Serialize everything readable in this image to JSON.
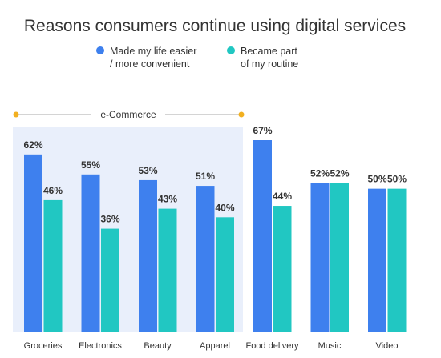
{
  "colors": {
    "series1": "#3e80ee",
    "series2": "#21c7c2",
    "highlight_bg": "#e9effb",
    "bracket": "#f2b020",
    "bracket_line": "#aaaaaa",
    "baseline": "#bbbbbb"
  },
  "chart_data": {
    "type": "bar",
    "title": "Reasons consumers continue using digital services",
    "categories": [
      "Groceries",
      "Electronics",
      "Beauty",
      "Apparel",
      "Food delivery",
      "Music",
      "Video"
    ],
    "series": [
      {
        "name": "Made my life easier / more convenient",
        "name_lines": [
          "Made my life easier",
          "/ more convenient"
        ],
        "values": [
          62,
          55,
          53,
          51,
          67,
          52,
          50
        ]
      },
      {
        "name": "Became part of my routine",
        "name_lines": [
          "Became part",
          "of my routine"
        ],
        "values": [
          46,
          36,
          43,
          40,
          44,
          52,
          50
        ]
      }
    ],
    "value_suffix": "%",
    "group": {
      "label": "e-Commerce",
      "categories": [
        "Groceries",
        "Electronics",
        "Beauty",
        "Apparel"
      ]
    },
    "ylim": [
      0,
      72
    ],
    "grid": false,
    "legend_position": "top"
  }
}
